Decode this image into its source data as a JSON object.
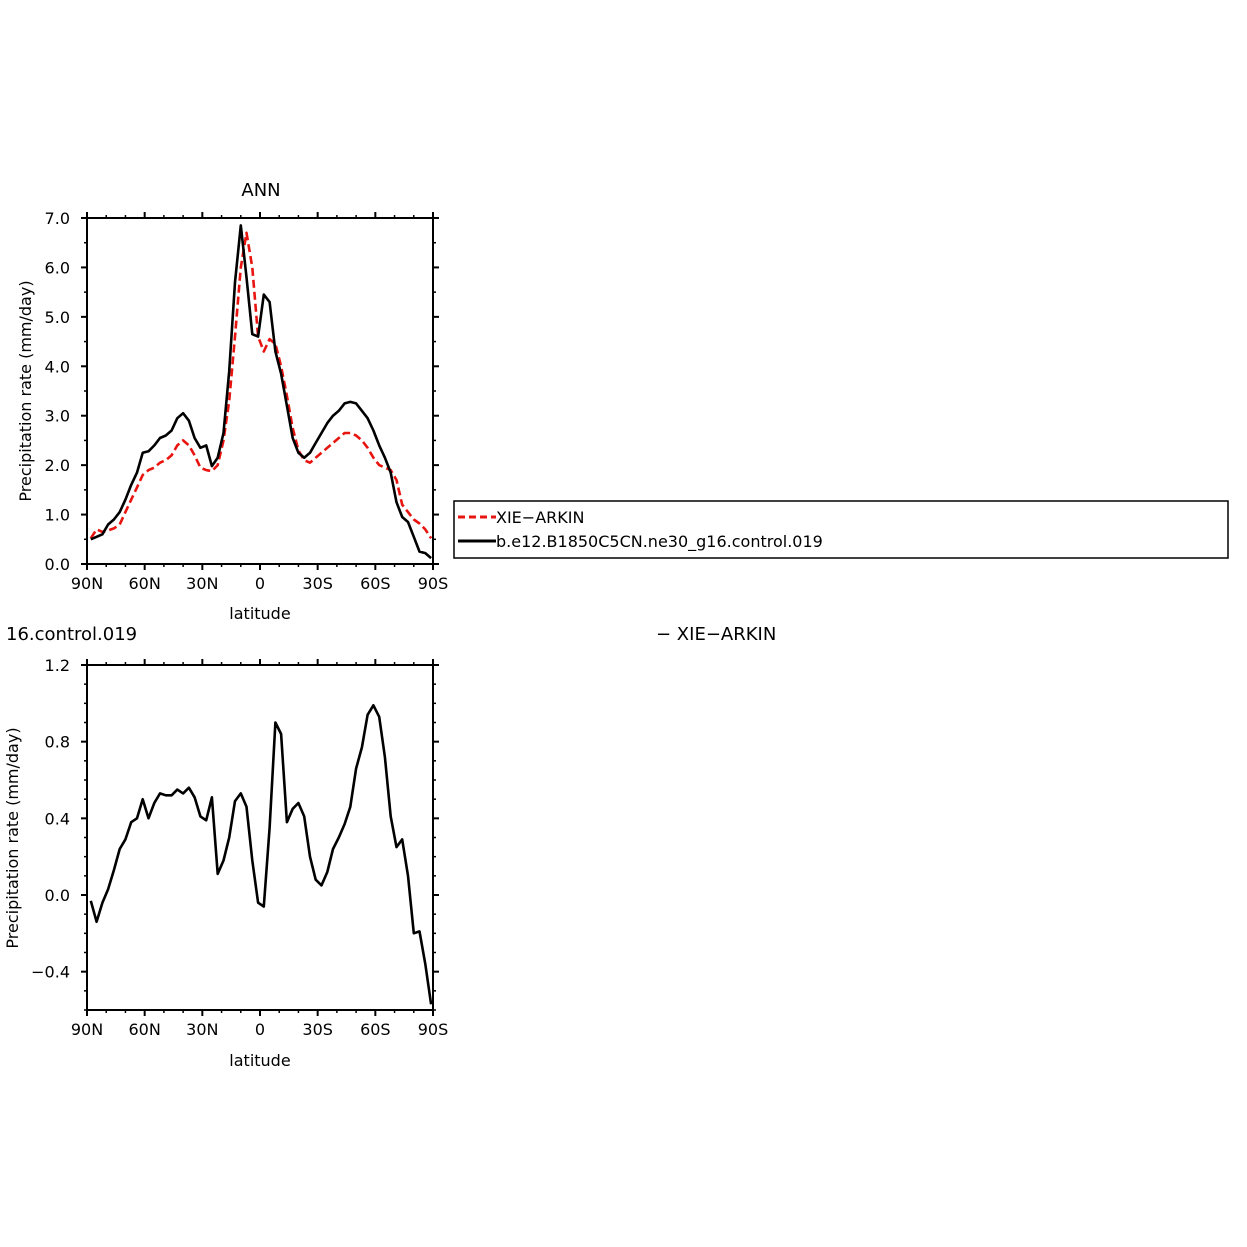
{
  "colors": {
    "obs": "#e8140f",
    "model": "#000000",
    "background": "#ffffff"
  },
  "panel1": {
    "title": "ANN",
    "ylabel": "Precipitation rate (mm/day)",
    "xlabel": "latitude",
    "yticks": [
      "0.0",
      "1.0",
      "2.0",
      "3.0",
      "4.0",
      "5.0",
      "6.0",
      "7.0"
    ],
    "xticks": [
      "90N",
      "60N",
      "30N",
      "0",
      "30S",
      "60S",
      "90S"
    ]
  },
  "panel2": {
    "left_label": "16.control.019",
    "right_label": "− XIE−ARKIN",
    "ylabel": "Precipitation rate (mm/day)",
    "xlabel": "latitude",
    "yticks": [
      "−0.4",
      "0.0",
      "0.4",
      "0.8",
      "1.2"
    ],
    "xticks": [
      "90N",
      "60N",
      "30N",
      "0",
      "30S",
      "60S",
      "90S"
    ]
  },
  "legend": [
    {
      "label": "XIE−ARKIN",
      "color": "#e8140f",
      "dash": true
    },
    {
      "label": "b.e12.B1850C5CN.ne30_g16.control.019",
      "color": "#000000",
      "dash": false
    }
  ],
  "chart_data": [
    {
      "type": "line",
      "title": "ANN",
      "xlabel": "latitude",
      "ylabel": "Precipitation rate (mm/day)",
      "xlim": [
        90,
        -90
      ],
      "ylim": [
        0,
        7
      ],
      "x_note": "latitude in degrees, positive = N, negative = S",
      "series": [
        {
          "name": "XIE−ARKIN",
          "style": "dashed",
          "x": [
            88,
            85,
            82,
            79,
            76,
            73,
            70,
            67,
            64,
            61,
            58,
            55,
            52,
            49,
            46,
            43,
            40,
            37,
            34,
            31,
            28,
            25,
            22,
            19,
            16,
            13,
            10,
            7,
            4,
            1,
            -2,
            -5,
            -8,
            -11,
            -14,
            -17,
            -20,
            -23,
            -26,
            -29,
            -32,
            -35,
            -38,
            -41,
            -44,
            -47,
            -50,
            -53,
            -56,
            -59,
            -62,
            -65,
            -68,
            -71,
            -74,
            -77,
            -80,
            -83,
            -86,
            -89
          ],
          "values": [
            0.52,
            0.7,
            0.65,
            0.68,
            0.72,
            0.8,
            1.05,
            1.3,
            1.55,
            1.8,
            1.9,
            1.95,
            2.05,
            2.1,
            2.2,
            2.4,
            2.5,
            2.4,
            2.2,
            1.95,
            1.9,
            1.88,
            2.0,
            2.5,
            3.3,
            4.6,
            6.0,
            6.7,
            6.0,
            4.6,
            4.3,
            4.55,
            4.45,
            4.0,
            3.4,
            2.75,
            2.3,
            2.1,
            2.05,
            2.15,
            2.25,
            2.35,
            2.45,
            2.55,
            2.65,
            2.65,
            2.6,
            2.5,
            2.35,
            2.15,
            2.0,
            1.95,
            1.9,
            1.7,
            1.2,
            1.05,
            0.9,
            0.82,
            0.7,
            0.52
          ]
        },
        {
          "name": "b.e12.B1850C5CN.ne30_g16.control.019",
          "style": "solid",
          "x": [
            88,
            85,
            82,
            79,
            76,
            73,
            70,
            67,
            64,
            61,
            58,
            55,
            52,
            49,
            46,
            43,
            40,
            37,
            34,
            31,
            28,
            25,
            22,
            19,
            16,
            13,
            10,
            7,
            4,
            1,
            -2,
            -5,
            -8,
            -11,
            -14,
            -17,
            -20,
            -23,
            -26,
            -29,
            -32,
            -35,
            -38,
            -41,
            -44,
            -47,
            -50,
            -53,
            -56,
            -59,
            -62,
            -65,
            -68,
            -71,
            -74,
            -77,
            -80,
            -83,
            -86,
            -89
          ],
          "values": [
            0.5,
            0.55,
            0.6,
            0.8,
            0.9,
            1.05,
            1.3,
            1.6,
            1.85,
            2.25,
            2.28,
            2.4,
            2.55,
            2.6,
            2.7,
            2.95,
            3.05,
            2.9,
            2.55,
            2.35,
            2.4,
            1.98,
            2.15,
            2.65,
            3.9,
            5.7,
            6.85,
            5.8,
            4.65,
            4.6,
            5.45,
            5.3,
            4.3,
            3.85,
            3.2,
            2.55,
            2.25,
            2.15,
            2.25,
            2.45,
            2.65,
            2.85,
            3.0,
            3.1,
            3.25,
            3.28,
            3.25,
            3.1,
            2.95,
            2.7,
            2.4,
            2.15,
            1.85,
            1.25,
            0.95,
            0.85,
            0.55,
            0.25,
            0.22,
            0.12
          ]
        }
      ]
    },
    {
      "type": "line",
      "title": "",
      "xlabel": "latitude",
      "ylabel": "Precipitation rate (mm/day)",
      "xlim": [
        90,
        -90
      ],
      "ylim": [
        -0.6,
        1.2
      ],
      "series": [
        {
          "name": "",
          "style": "solid",
          "x": [
            88,
            85,
            82,
            79,
            76,
            73,
            70,
            67,
            64,
            61,
            58,
            55,
            52,
            49,
            46,
            43,
            40,
            37,
            34,
            31,
            28,
            25,
            22,
            19,
            16,
            13,
            10,
            7,
            4,
            1,
            -2,
            -5,
            -8,
            -11,
            -14,
            -17,
            -20,
            -23,
            -26,
            -29,
            -32,
            -35,
            -38,
            -41,
            -44,
            -47,
            -50,
            -53,
            -56,
            -59,
            -62,
            -65,
            -68,
            -71,
            -74,
            -77,
            -80,
            -83,
            -86,
            -89
          ],
          "values": [
            -0.03,
            -0.14,
            -0.04,
            0.03,
            0.13,
            0.24,
            0.29,
            0.38,
            0.4,
            0.5,
            0.4,
            0.48,
            0.53,
            0.52,
            0.52,
            0.55,
            0.53,
            0.56,
            0.51,
            0.41,
            0.39,
            0.51,
            0.11,
            0.18,
            0.3,
            0.49,
            0.53,
            0.46,
            0.18,
            -0.04,
            -0.06,
            0.35,
            0.9,
            0.84,
            0.38,
            0.45,
            0.48,
            0.41,
            0.2,
            0.08,
            0.05,
            0.12,
            0.24,
            0.3,
            0.37,
            0.46,
            0.66,
            0.77,
            0.94,
            0.99,
            0.93,
            0.72,
            0.41,
            0.25,
            0.29,
            0.1,
            -0.2,
            -0.19,
            -0.36,
            -0.57
          ]
        }
      ]
    }
  ]
}
